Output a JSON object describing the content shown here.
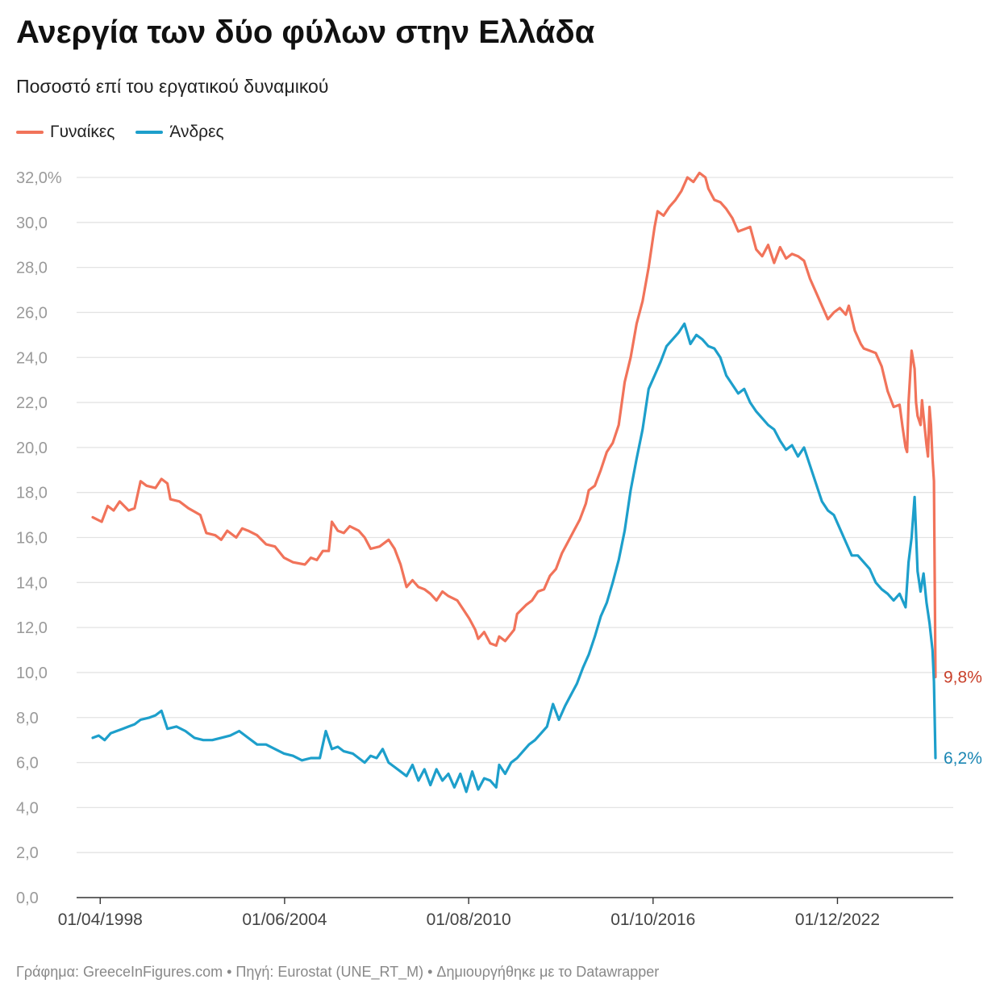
{
  "title": "Ανεργία των δύο φύλων στην Ελλάδα",
  "subtitle": "Ποσοστό επί του εργατικού δυναμικού",
  "footer": "Γράφημα: GreeceInFigures.com • Πηγή: Eurostat (UNE_RT_M) • Δημιουργήθηκε με το Datawrapper",
  "colors": {
    "women": "#f1735a",
    "men": "#1d9fcb",
    "women_label": "#c9402a",
    "men_label": "#1a86b3",
    "grid": "#e3e3e3",
    "axis": "#333333"
  },
  "chart_data": {
    "type": "line",
    "title": "Ανεργία των δύο φύλων στην Ελλάδα",
    "subtitle": "Ποσοστό επί του εργατικού δυναμικού",
    "y_unit": "%",
    "ylim": [
      0,
      32
    ],
    "y_ticks": [
      0,
      2,
      4,
      6,
      8,
      10,
      12,
      14,
      16,
      18,
      20,
      22,
      24,
      26,
      28,
      30,
      32
    ],
    "y_tick_labels": [
      "0,0",
      "2,0",
      "4,0",
      "6,0",
      "8,0",
      "10,0",
      "12,0",
      "14,0",
      "16,0",
      "18,0",
      "20,0",
      "22,0",
      "24,0",
      "26,0",
      "28,0",
      "30,0",
      "32,0%"
    ],
    "x_ticks": [
      1998.25,
      2004.42,
      2010.58,
      2016.75,
      2022.92
    ],
    "x_tick_labels": [
      "01/04/1998",
      "01/06/2004",
      "01/08/2010",
      "01/10/2016",
      "01/12/2022"
    ],
    "xlim": [
      1998.0,
      2026.2
    ],
    "grid": true,
    "legend_position": "top-left",
    "series": [
      {
        "name": "Γυναίκες",
        "color": "#f1735a",
        "end_label": "9,8%",
        "points": [
          [
            1998.0,
            16.9
          ],
          [
            1998.3,
            16.7
          ],
          [
            1998.5,
            17.4
          ],
          [
            1998.7,
            17.2
          ],
          [
            1998.9,
            17.6
          ],
          [
            1999.2,
            17.2
          ],
          [
            1999.4,
            17.3
          ],
          [
            1999.6,
            18.5
          ],
          [
            1999.8,
            18.3
          ],
          [
            2000.1,
            18.2
          ],
          [
            2000.3,
            18.6
          ],
          [
            2000.5,
            18.4
          ],
          [
            2000.6,
            17.7
          ],
          [
            2000.9,
            17.6
          ],
          [
            2001.2,
            17.3
          ],
          [
            2001.6,
            17.0
          ],
          [
            2001.8,
            16.2
          ],
          [
            2002.1,
            16.1
          ],
          [
            2002.3,
            15.9
          ],
          [
            2002.5,
            16.3
          ],
          [
            2002.8,
            16.0
          ],
          [
            2003.0,
            16.4
          ],
          [
            2003.2,
            16.3
          ],
          [
            2003.5,
            16.1
          ],
          [
            2003.8,
            15.7
          ],
          [
            2004.1,
            15.6
          ],
          [
            2004.4,
            15.1
          ],
          [
            2004.7,
            14.9
          ],
          [
            2005.1,
            14.8
          ],
          [
            2005.3,
            15.1
          ],
          [
            2005.5,
            15.0
          ],
          [
            2005.7,
            15.4
          ],
          [
            2005.9,
            15.4
          ],
          [
            2006.0,
            16.7
          ],
          [
            2006.2,
            16.3
          ],
          [
            2006.4,
            16.2
          ],
          [
            2006.6,
            16.5
          ],
          [
            2006.9,
            16.3
          ],
          [
            2007.1,
            16.0
          ],
          [
            2007.3,
            15.5
          ],
          [
            2007.6,
            15.6
          ],
          [
            2007.9,
            15.9
          ],
          [
            2008.1,
            15.5
          ],
          [
            2008.3,
            14.8
          ],
          [
            2008.5,
            13.8
          ],
          [
            2008.7,
            14.1
          ],
          [
            2008.9,
            13.8
          ],
          [
            2009.1,
            13.7
          ],
          [
            2009.3,
            13.5
          ],
          [
            2009.5,
            13.2
          ],
          [
            2009.7,
            13.6
          ],
          [
            2009.9,
            13.4
          ],
          [
            2010.2,
            13.2
          ],
          [
            2010.4,
            12.8
          ],
          [
            2010.6,
            12.4
          ],
          [
            2010.8,
            11.9
          ],
          [
            2010.9,
            11.5
          ],
          [
            2011.1,
            11.8
          ],
          [
            2011.3,
            11.3
          ],
          [
            2011.5,
            11.2
          ],
          [
            2011.6,
            11.6
          ],
          [
            2011.8,
            11.4
          ],
          [
            2012.1,
            11.9
          ],
          [
            2012.2,
            12.6
          ],
          [
            2012.5,
            13.0
          ],
          [
            2012.7,
            13.2
          ],
          [
            2012.9,
            13.6
          ],
          [
            2013.1,
            13.7
          ],
          [
            2013.3,
            14.3
          ],
          [
            2013.5,
            14.6
          ],
          [
            2013.7,
            15.3
          ],
          [
            2013.9,
            15.8
          ],
          [
            2014.1,
            16.3
          ],
          [
            2014.3,
            16.8
          ],
          [
            2014.5,
            17.5
          ],
          [
            2014.6,
            18.1
          ],
          [
            2014.8,
            18.3
          ],
          [
            2015.0,
            19.0
          ],
          [
            2015.2,
            19.8
          ],
          [
            2015.4,
            20.2
          ],
          [
            2015.6,
            21.0
          ],
          [
            2015.8,
            22.9
          ],
          [
            2016.0,
            24.0
          ],
          [
            2016.2,
            25.5
          ],
          [
            2016.4,
            26.5
          ],
          [
            2016.6,
            28.0
          ],
          [
            2016.8,
            29.8
          ],
          [
            2016.9,
            30.5
          ],
          [
            2017.1,
            30.3
          ],
          [
            2017.3,
            30.7
          ],
          [
            2017.5,
            31.0
          ],
          [
            2017.7,
            31.4
          ],
          [
            2017.9,
            32.0
          ],
          [
            2018.1,
            31.8
          ],
          [
            2018.3,
            32.2
          ],
          [
            2018.5,
            32.0
          ],
          [
            2018.6,
            31.5
          ],
          [
            2018.8,
            31.0
          ],
          [
            2019.0,
            30.9
          ],
          [
            2019.2,
            30.6
          ],
          [
            2019.4,
            30.2
          ],
          [
            2019.6,
            29.6
          ],
          [
            2019.8,
            29.7
          ],
          [
            2020.0,
            29.8
          ],
          [
            2020.2,
            28.8
          ],
          [
            2020.4,
            28.5
          ],
          [
            2020.6,
            29.0
          ],
          [
            2020.8,
            28.2
          ],
          [
            2021.0,
            28.9
          ],
          [
            2021.2,
            28.4
          ],
          [
            2021.4,
            28.6
          ],
          [
            2021.6,
            28.5
          ],
          [
            2021.8,
            28.3
          ],
          [
            2022.0,
            27.5
          ],
          [
            2022.2,
            26.9
          ],
          [
            2022.4,
            26.3
          ],
          [
            2022.6,
            25.7
          ],
          [
            2022.8,
            26.0
          ],
          [
            2023.0,
            26.2
          ],
          [
            2023.2,
            25.9
          ],
          [
            2023.3,
            26.3
          ],
          [
            2023.5,
            25.2
          ],
          [
            2023.7,
            24.6
          ],
          [
            2023.8,
            24.4
          ],
          [
            2024.0,
            24.3
          ],
          [
            2024.2,
            24.2
          ],
          [
            2024.4,
            23.6
          ],
          [
            2024.6,
            22.5
          ],
          [
            2024.8,
            21.8
          ],
          [
            2025.0,
            21.9
          ],
          [
            2025.1,
            20.9
          ],
          [
            2025.2,
            20.0
          ],
          [
            2025.25,
            19.8
          ],
          [
            2025.3,
            22.0
          ],
          [
            2025.4,
            24.3
          ],
          [
            2025.5,
            23.5
          ],
          [
            2025.55,
            22.0
          ],
          [
            2025.6,
            21.4
          ],
          [
            2025.7,
            21.0
          ],
          [
            2025.75,
            22.1
          ],
          [
            2025.8,
            21.4
          ],
          [
            2025.9,
            20.1
          ],
          [
            2025.95,
            19.6
          ],
          [
            2026.0,
            21.8
          ],
          [
            2026.05,
            21.0
          ],
          [
            2026.1,
            19.5
          ],
          [
            2026.15,
            18.5
          ],
          [
            2026.2,
            9.8
          ]
        ]
      },
      {
        "name": "Άνδρες",
        "color": "#1d9fcb",
        "end_label": "6,2%",
        "points": [
          [
            1998.0,
            7.1
          ],
          [
            1998.2,
            7.2
          ],
          [
            1998.4,
            7.0
          ],
          [
            1998.6,
            7.3
          ],
          [
            1998.8,
            7.4
          ],
          [
            1999.0,
            7.5
          ],
          [
            1999.2,
            7.6
          ],
          [
            1999.4,
            7.7
          ],
          [
            1999.6,
            7.9
          ],
          [
            1999.9,
            8.0
          ],
          [
            2000.1,
            8.1
          ],
          [
            2000.3,
            8.3
          ],
          [
            2000.5,
            7.5
          ],
          [
            2000.8,
            7.6
          ],
          [
            2001.1,
            7.4
          ],
          [
            2001.4,
            7.1
          ],
          [
            2001.7,
            7.0
          ],
          [
            2002.0,
            7.0
          ],
          [
            2002.3,
            7.1
          ],
          [
            2002.6,
            7.2
          ],
          [
            2002.9,
            7.4
          ],
          [
            2003.2,
            7.1
          ],
          [
            2003.5,
            6.8
          ],
          [
            2003.8,
            6.8
          ],
          [
            2004.1,
            6.6
          ],
          [
            2004.4,
            6.4
          ],
          [
            2004.7,
            6.3
          ],
          [
            2005.0,
            6.1
          ],
          [
            2005.3,
            6.2
          ],
          [
            2005.6,
            6.2
          ],
          [
            2005.8,
            7.4
          ],
          [
            2006.0,
            6.6
          ],
          [
            2006.2,
            6.7
          ],
          [
            2006.4,
            6.5
          ],
          [
            2006.7,
            6.4
          ],
          [
            2006.9,
            6.2
          ],
          [
            2007.1,
            6.0
          ],
          [
            2007.3,
            6.3
          ],
          [
            2007.5,
            6.2
          ],
          [
            2007.7,
            6.6
          ],
          [
            2007.9,
            6.0
          ],
          [
            2008.1,
            5.8
          ],
          [
            2008.3,
            5.6
          ],
          [
            2008.5,
            5.4
          ],
          [
            2008.7,
            5.9
          ],
          [
            2008.9,
            5.2
          ],
          [
            2009.1,
            5.7
          ],
          [
            2009.3,
            5.0
          ],
          [
            2009.5,
            5.7
          ],
          [
            2009.7,
            5.2
          ],
          [
            2009.9,
            5.5
          ],
          [
            2010.1,
            4.9
          ],
          [
            2010.3,
            5.5
          ],
          [
            2010.5,
            4.7
          ],
          [
            2010.7,
            5.6
          ],
          [
            2010.9,
            4.8
          ],
          [
            2011.1,
            5.3
          ],
          [
            2011.3,
            5.2
          ],
          [
            2011.5,
            4.9
          ],
          [
            2011.6,
            5.9
          ],
          [
            2011.8,
            5.5
          ],
          [
            2012.0,
            6.0
          ],
          [
            2012.2,
            6.2
          ],
          [
            2012.4,
            6.5
          ],
          [
            2012.6,
            6.8
          ],
          [
            2012.8,
            7.0
          ],
          [
            2013.0,
            7.3
          ],
          [
            2013.2,
            7.6
          ],
          [
            2013.4,
            8.6
          ],
          [
            2013.6,
            7.9
          ],
          [
            2013.8,
            8.5
          ],
          [
            2014.0,
            9.0
          ],
          [
            2014.2,
            9.5
          ],
          [
            2014.4,
            10.2
          ],
          [
            2014.6,
            10.8
          ],
          [
            2014.8,
            11.6
          ],
          [
            2015.0,
            12.5
          ],
          [
            2015.2,
            13.1
          ],
          [
            2015.4,
            14.0
          ],
          [
            2015.6,
            15.0
          ],
          [
            2015.8,
            16.3
          ],
          [
            2016.0,
            18.1
          ],
          [
            2016.2,
            19.5
          ],
          [
            2016.4,
            20.8
          ],
          [
            2016.6,
            22.6
          ],
          [
            2016.8,
            23.2
          ],
          [
            2017.0,
            23.8
          ],
          [
            2017.2,
            24.5
          ],
          [
            2017.4,
            24.8
          ],
          [
            2017.6,
            25.1
          ],
          [
            2017.8,
            25.5
          ],
          [
            2018.0,
            24.6
          ],
          [
            2018.2,
            25.0
          ],
          [
            2018.4,
            24.8
          ],
          [
            2018.6,
            24.5
          ],
          [
            2018.8,
            24.4
          ],
          [
            2019.0,
            24.0
          ],
          [
            2019.2,
            23.2
          ],
          [
            2019.4,
            22.8
          ],
          [
            2019.6,
            22.4
          ],
          [
            2019.8,
            22.6
          ],
          [
            2020.0,
            22.0
          ],
          [
            2020.2,
            21.6
          ],
          [
            2020.4,
            21.3
          ],
          [
            2020.6,
            21.0
          ],
          [
            2020.8,
            20.8
          ],
          [
            2021.0,
            20.3
          ],
          [
            2021.2,
            19.9
          ],
          [
            2021.4,
            20.1
          ],
          [
            2021.6,
            19.6
          ],
          [
            2021.8,
            20.0
          ],
          [
            2022.0,
            19.2
          ],
          [
            2022.2,
            18.4
          ],
          [
            2022.4,
            17.6
          ],
          [
            2022.6,
            17.2
          ],
          [
            2022.8,
            17.0
          ],
          [
            2023.0,
            16.4
          ],
          [
            2023.2,
            15.8
          ],
          [
            2023.4,
            15.2
          ],
          [
            2023.6,
            15.2
          ],
          [
            2023.8,
            14.9
          ],
          [
            2024.0,
            14.6
          ],
          [
            2024.2,
            14.0
          ],
          [
            2024.4,
            13.7
          ],
          [
            2024.6,
            13.5
          ],
          [
            2024.8,
            13.2
          ],
          [
            2025.0,
            13.5
          ],
          [
            2025.2,
            12.9
          ],
          [
            2025.3,
            14.9
          ],
          [
            2025.4,
            16.0
          ],
          [
            2025.5,
            17.8
          ],
          [
            2025.6,
            14.5
          ],
          [
            2025.7,
            13.6
          ],
          [
            2025.8,
            14.4
          ],
          [
            2025.9,
            13.1
          ],
          [
            2026.0,
            12.2
          ],
          [
            2026.1,
            11.0
          ],
          [
            2026.15,
            9.6
          ],
          [
            2026.2,
            6.2
          ]
        ]
      }
    ]
  }
}
